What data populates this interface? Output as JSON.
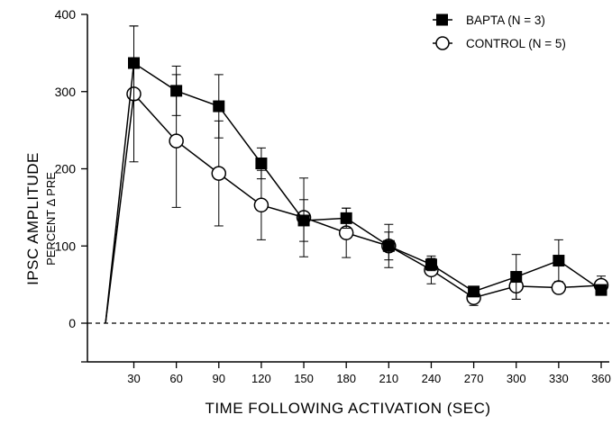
{
  "chart_data": {
    "type": "line",
    "xlabel": "TIME FOLLOWING ACTIVATION (SEC)",
    "ylabel": "IPSC AMPLITUDE",
    "ylabel_sub": "PERCENT Δ PRE",
    "x_ticks": [
      30,
      60,
      90,
      120,
      150,
      180,
      210,
      240,
      270,
      300,
      330,
      360
    ],
    "y_ticks": [
      0,
      100,
      200,
      300,
      400
    ],
    "ylim": [
      -50,
      400
    ],
    "xlim": [
      10,
      375
    ],
    "baseline": 0,
    "baseline_style": "dashed",
    "legend_position": "top-right",
    "series": [
      {
        "name": "BAPTA (N = 3)",
        "marker": "filled-square",
        "color": "#000000",
        "x": [
          10,
          30,
          60,
          90,
          120,
          150,
          180,
          210,
          240,
          270,
          300,
          330,
          360
        ],
        "y": [
          0,
          337,
          301,
          281,
          207,
          133,
          136,
          100,
          76,
          41,
          60,
          81,
          43
        ],
        "err": [
          0,
          48,
          32,
          41,
          20,
          27,
          13,
          18,
          8,
          5,
          29,
          27,
          4
        ]
      },
      {
        "name": "CONTROL (N = 5)",
        "marker": "open-circle",
        "color": "#000000",
        "x": [
          10,
          30,
          60,
          90,
          120,
          150,
          180,
          210,
          240,
          270,
          300,
          330,
          360
        ],
        "y": [
          0,
          297,
          236,
          194,
          153,
          137,
          117,
          100,
          69,
          33,
          48,
          46,
          49
        ],
        "err": [
          0,
          88,
          86,
          68,
          45,
          51,
          32,
          28,
          18,
          10,
          17,
          0,
          12
        ]
      }
    ]
  }
}
